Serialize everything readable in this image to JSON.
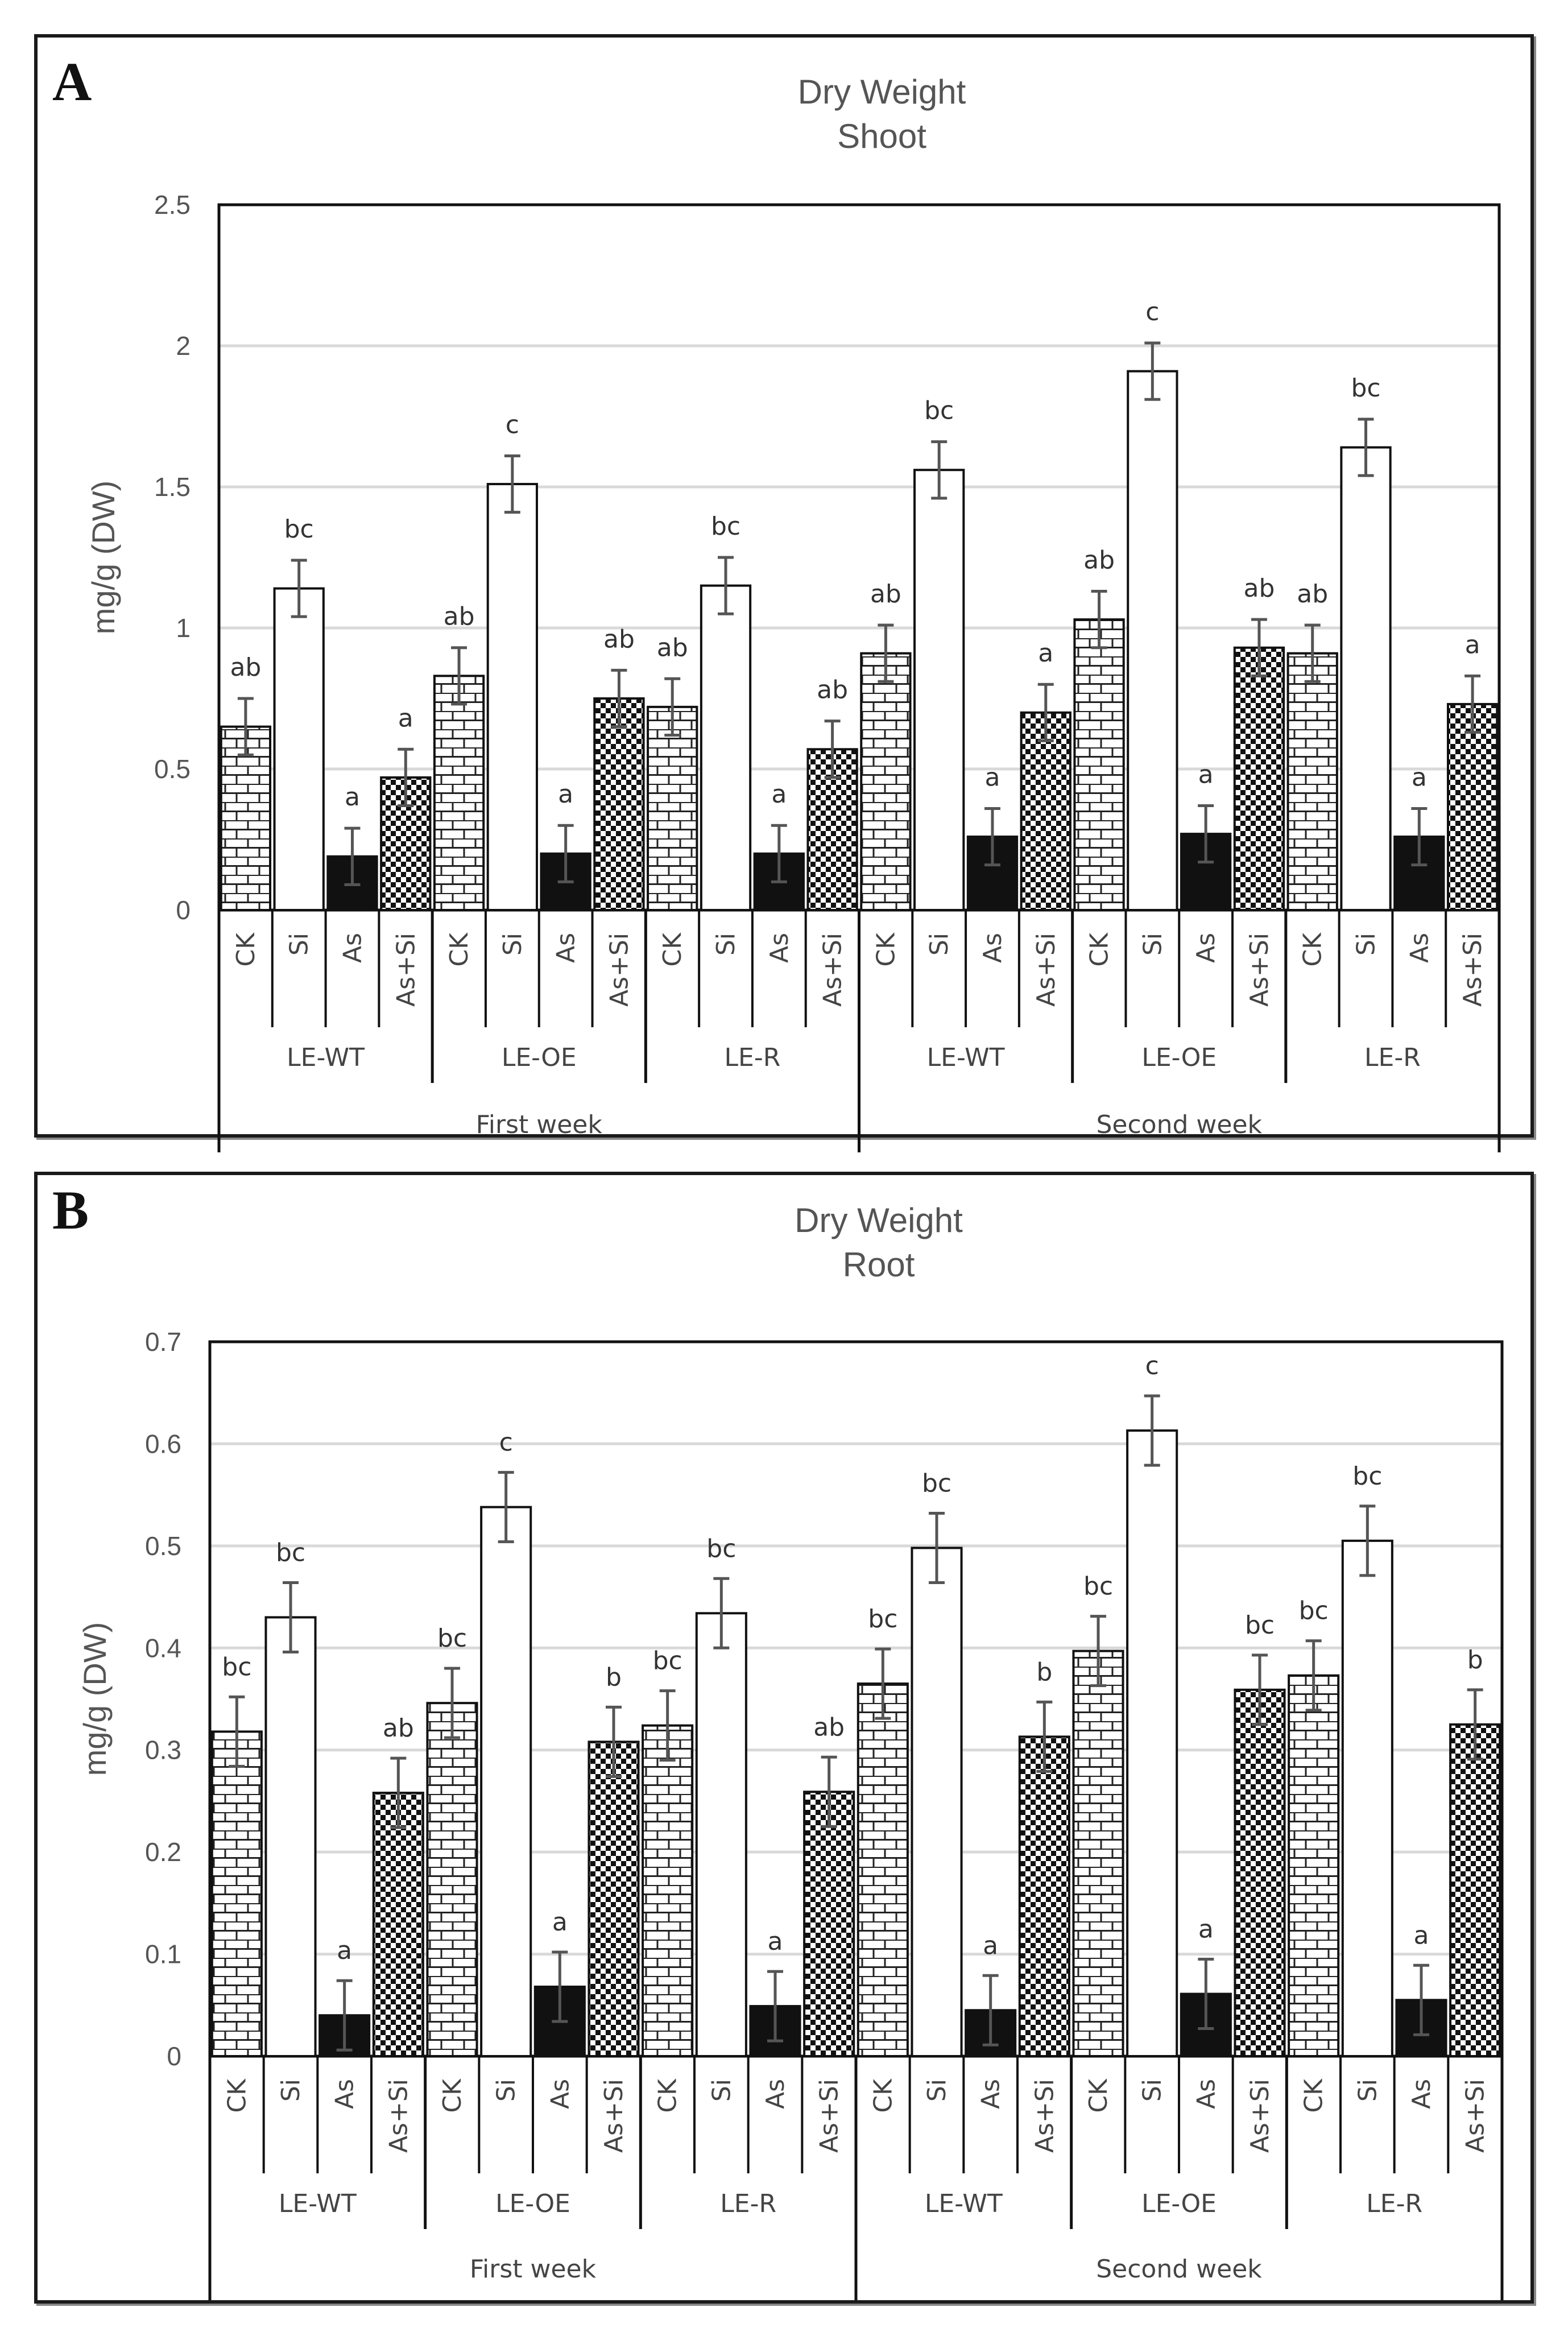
{
  "charts": [
    {
      "panel_label": "A",
      "title_line1": "Dry Weight",
      "title_line2": "Shoot",
      "ylabel": "mg/g (DW)",
      "y_ticks": [
        "0",
        "0.5",
        "1",
        "1.5",
        "2",
        "2.5"
      ],
      "sub_categories": [
        "CK",
        "Si",
        "As",
        "As+Si"
      ],
      "groups": [
        "LE-WT",
        "LE-OE",
        "LE-R",
        "LE-WT",
        "LE-OE",
        "LE-R"
      ],
      "periods": [
        "First week",
        "Second week"
      ]
    },
    {
      "panel_label": "B",
      "title_line1": "Dry Weight",
      "title_line2": "Root",
      "ylabel": "mg/g (DW)",
      "y_ticks": [
        "0",
        "0.1",
        "0.2",
        "0.3",
        "0.4",
        "0.5",
        "0.6",
        "0.7"
      ],
      "sub_categories": [
        "CK",
        "Si",
        "As",
        "As+Si"
      ],
      "groups": [
        "LE-WT",
        "LE-OE",
        "LE-R",
        "LE-WT",
        "LE-OE",
        "LE-R"
      ],
      "periods": [
        "First week",
        "Second week"
      ]
    }
  ],
  "chart_data": [
    {
      "type": "bar",
      "title": "Dry Weight Shoot",
      "ylabel": "mg/g (DW)",
      "ylim": [
        0,
        2.5
      ],
      "grid": true,
      "categories": [
        "First week LE-WT",
        "First week LE-OE",
        "First week LE-R",
        "Second week LE-WT",
        "Second week LE-OE",
        "Second week LE-R"
      ],
      "series": [
        {
          "name": "CK",
          "pattern": "brick",
          "values": [
            0.65,
            0.83,
            0.72,
            0.91,
            1.03,
            0.91
          ],
          "errors": [
            0.1,
            0.1,
            0.1,
            0.1,
            0.1,
            0.1
          ],
          "letters": [
            "ab",
            "ab",
            "ab",
            "ab",
            "ab",
            "ab"
          ]
        },
        {
          "name": "Si",
          "pattern": "white",
          "values": [
            1.14,
            1.51,
            1.15,
            1.56,
            1.91,
            1.64
          ],
          "errors": [
            0.1,
            0.1,
            0.1,
            0.1,
            0.1,
            0.1
          ],
          "letters": [
            "bc",
            "c",
            "bc",
            "bc",
            "c",
            "bc"
          ]
        },
        {
          "name": "As",
          "pattern": "black",
          "values": [
            0.19,
            0.2,
            0.2,
            0.26,
            0.27,
            0.26
          ],
          "errors": [
            0.1,
            0.1,
            0.1,
            0.1,
            0.1,
            0.1
          ],
          "letters": [
            "a",
            "a",
            "a",
            "a",
            "a",
            "a"
          ]
        },
        {
          "name": "As+Si",
          "pattern": "checker",
          "values": [
            0.47,
            0.75,
            0.57,
            0.7,
            0.93,
            0.73
          ],
          "errors": [
            0.1,
            0.1,
            0.1,
            0.1,
            0.1,
            0.1
          ],
          "letters": [
            "a",
            "ab",
            "ab",
            "a",
            "ab",
            "a"
          ]
        }
      ]
    },
    {
      "type": "bar",
      "title": "Dry Weight Root",
      "ylabel": "mg/g (DW)",
      "ylim": [
        0,
        0.7
      ],
      "grid": true,
      "categories": [
        "First week LE-WT",
        "First week LE-OE",
        "First week LE-R",
        "Second week LE-WT",
        "Second week LE-OE",
        "Second week LE-R"
      ],
      "series": [
        {
          "name": "CK",
          "pattern": "brick",
          "values": [
            0.318,
            0.346,
            0.324,
            0.365,
            0.397,
            0.373
          ],
          "errors": [
            0.034,
            0.034,
            0.034,
            0.034,
            0.034,
            0.034
          ],
          "letters": [
            "bc",
            "bc",
            "bc",
            "bc",
            "bc",
            "bc"
          ]
        },
        {
          "name": "Si",
          "pattern": "white",
          "values": [
            0.43,
            0.538,
            0.434,
            0.498,
            0.613,
            0.505
          ],
          "errors": [
            0.034,
            0.034,
            0.034,
            0.034,
            0.034,
            0.034
          ],
          "letters": [
            "bc",
            "c",
            "bc",
            "bc",
            "c",
            "bc"
          ]
        },
        {
          "name": "As",
          "pattern": "black",
          "values": [
            0.04,
            0.068,
            0.049,
            0.045,
            0.061,
            0.055
          ],
          "errors": [
            0.034,
            0.034,
            0.034,
            0.034,
            0.034,
            0.034
          ],
          "letters": [
            "a",
            "a",
            "a",
            "a",
            "a",
            "a"
          ]
        },
        {
          "name": "As+Si",
          "pattern": "checker",
          "values": [
            0.258,
            0.308,
            0.259,
            0.313,
            0.359,
            0.325
          ],
          "errors": [
            0.034,
            0.034,
            0.034,
            0.034,
            0.034,
            0.034
          ],
          "letters": [
            "ab",
            "b",
            "ab",
            "b",
            "bc",
            "b"
          ]
        }
      ]
    }
  ]
}
